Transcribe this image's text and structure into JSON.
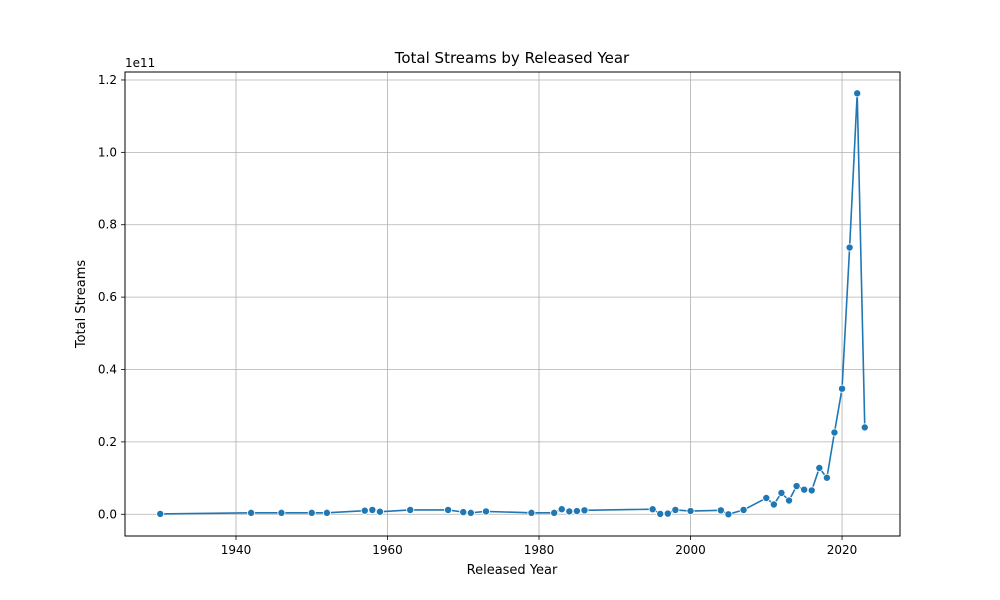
{
  "chart_data": {
    "type": "line",
    "title": "Total Streams by Released Year",
    "xlabel": "Released Year",
    "ylabel": "Total Streams",
    "y_offset_label": "1e11",
    "xlim": [
      1925.35,
      2027.65
    ],
    "ylim": [
      -0.06,
      1.222
    ],
    "y_scale_note": "y values in units of 1e11",
    "xticks": [
      "1940",
      "1960",
      "1980",
      "2000",
      "2020"
    ],
    "xtick_values": [
      1940,
      1960,
      1980,
      2000,
      2020
    ],
    "yticks": [
      "0.0",
      "0.2",
      "0.4",
      "0.6",
      "0.8",
      "1.0",
      "1.2"
    ],
    "ytick_values": [
      0.0,
      0.2,
      0.4,
      0.6,
      0.8,
      1.0,
      1.2
    ],
    "grid": true,
    "line_color": "#1f77b4",
    "series": [
      {
        "x": [
          1930,
          1942,
          1946,
          1950,
          1952,
          1957,
          1958,
          1959,
          1963,
          1968,
          1970,
          1971,
          1973,
          1979,
          1982,
          1983,
          1984,
          1985,
          1986,
          1995,
          1996,
          1997,
          1998,
          2000,
          2004,
          2005,
          2007,
          2010,
          2011,
          2012,
          2013,
          2014,
          2015,
          2016,
          2017,
          2018,
          2019,
          2020,
          2021,
          2022,
          2023
        ],
        "y": [
          0.001,
          0.004,
          0.004,
          0.004,
          0.004,
          0.01,
          0.012,
          0.007,
          0.012,
          0.012,
          0.006,
          0.004,
          0.008,
          0.004,
          0.004,
          0.014,
          0.008,
          0.009,
          0.011,
          0.014,
          0.001,
          0.002,
          0.012,
          0.009,
          0.011,
          0.0,
          0.012,
          0.045,
          0.027,
          0.059,
          0.038,
          0.078,
          0.068,
          0.066,
          0.128,
          0.101,
          0.226,
          0.347,
          0.737,
          1.163,
          0.24
        ]
      }
    ]
  }
}
